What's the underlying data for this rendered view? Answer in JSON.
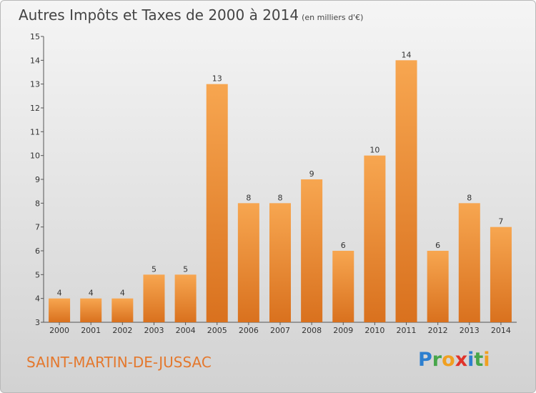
{
  "title": "Autres Impôts et Taxes de 2000 à 2014",
  "subtitle": "(en milliers d'€)",
  "town": "SAINT-MARTIN-DE-JUSSAC",
  "brand": {
    "letters": [
      {
        "ch": "P",
        "color": "#2d7fcf"
      },
      {
        "ch": "r",
        "color": "#47a64a"
      },
      {
        "ch": "o",
        "color": "#f0a020"
      },
      {
        "ch": "x",
        "color": "#e0332a"
      },
      {
        "ch": "i",
        "color": "#2d7fcf"
      },
      {
        "ch": "t",
        "color": "#47a64a"
      },
      {
        "ch": "i",
        "color": "#f0a020"
      }
    ]
  },
  "chart_data": {
    "type": "bar",
    "categories": [
      "2000",
      "2001",
      "2002",
      "2003",
      "2004",
      "2005",
      "2006",
      "2007",
      "2008",
      "2009",
      "2010",
      "2011",
      "2012",
      "2013",
      "2014"
    ],
    "values": [
      4,
      4,
      4,
      5,
      5,
      13,
      8,
      8,
      9,
      6,
      10,
      14,
      6,
      8,
      7
    ],
    "ylim": [
      3,
      15
    ],
    "yticks": [
      3,
      4,
      5,
      6,
      7,
      8,
      9,
      10,
      11,
      12,
      13,
      14,
      15
    ],
    "grid": false,
    "bar_color_top": "#f7a650",
    "bar_color_bottom": "#d9711e"
  }
}
